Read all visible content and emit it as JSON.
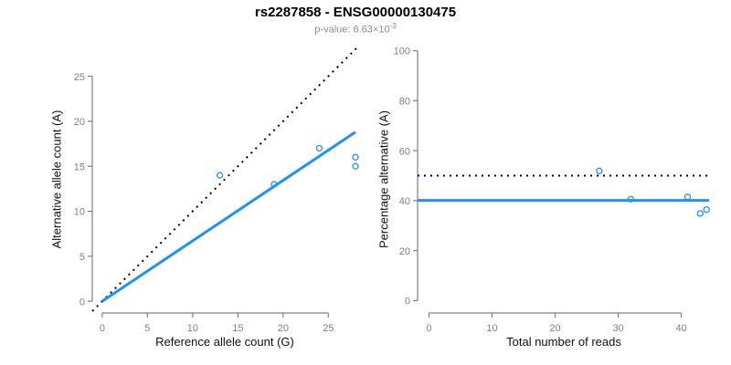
{
  "header": {
    "title": "rs2287858 - ENSG00000130475",
    "subtitle_prefix": "p-value: 6.63×10",
    "subtitle_exponent": "-3"
  },
  "colors": {
    "accent": "#1E90FF",
    "axis": "#808080",
    "black": "#000000",
    "title": "#000000",
    "subtitle": "#8C8C8C"
  },
  "chart_data": [
    {
      "type": "scatter",
      "name": "allele-counts",
      "xlabel": "Reference allele count (G)",
      "ylabel": "Alternative allele count (A)",
      "xticks": [
        0,
        5,
        10,
        15,
        20,
        25
      ],
      "yticks": [
        0,
        5,
        10,
        15,
        20,
        25
      ],
      "xlim": [
        -1.1,
        28.1
      ],
      "ylim": [
        -1.1,
        28.1
      ],
      "grid": false,
      "points": [
        [
          13,
          14
        ],
        [
          19,
          13
        ],
        [
          24,
          17
        ],
        [
          28,
          15
        ],
        [
          28,
          16
        ]
      ],
      "lines": [
        {
          "kind": "abline",
          "slope": 1,
          "intercept": 0,
          "style": "dotted",
          "color": "black"
        },
        {
          "kind": "segment",
          "x1": 0,
          "y1": 0,
          "x2": 28,
          "y2": 18.8,
          "style": "solid",
          "color": "accent"
        }
      ]
    },
    {
      "type": "scatter",
      "name": "percentage-vs-reads",
      "xlabel": "Total number of reads",
      "ylabel": "Percentage alternative (A)",
      "xticks": [
        0,
        10,
        20,
        30,
        40
      ],
      "yticks": [
        0,
        20,
        40,
        60,
        80,
        100
      ],
      "xlim": [
        -1.8,
        44.4
      ],
      "ylim": [
        -4.2,
        104.2
      ],
      "grid": false,
      "points": [
        [
          27,
          51.9
        ],
        [
          32,
          40.6
        ],
        [
          41,
          41.5
        ],
        [
          43,
          34.9
        ],
        [
          44,
          36.4
        ]
      ],
      "lines": [
        {
          "kind": "hline",
          "y": 50,
          "style": "dotted",
          "color": "black"
        },
        {
          "kind": "hline",
          "y": 40.1,
          "style": "solid",
          "color": "accent"
        }
      ]
    }
  ]
}
